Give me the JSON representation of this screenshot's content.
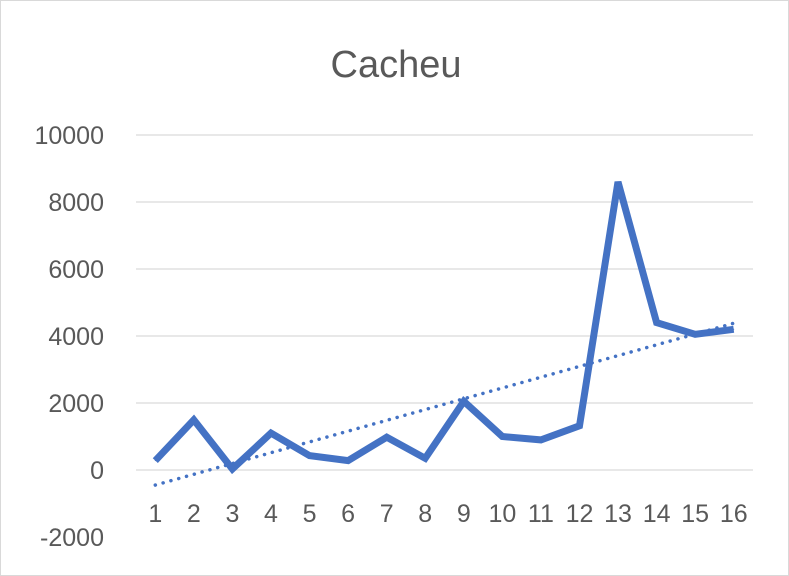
{
  "chart_data": {
    "type": "line",
    "title": "Cacheu",
    "xlabel": "",
    "ylabel": "",
    "categories": [
      "1",
      "2",
      "3",
      "4",
      "5",
      "6",
      "7",
      "8",
      "9",
      "10",
      "11",
      "12",
      "13",
      "14",
      "15",
      "16"
    ],
    "series": [
      {
        "values": [
          280,
          1500,
          30,
          1100,
          430,
          280,
          980,
          350,
          2050,
          1000,
          900,
          1320,
          8600,
          4400,
          4050,
          4200
        ],
        "color": "#4472c4",
        "style": "solid"
      }
    ],
    "trendline": {
      "kind": "linear",
      "start": -450,
      "end": 4380,
      "color": "#4472c4",
      "style": "dotted"
    },
    "ylim": [
      -2000,
      10000
    ],
    "yticks": [
      "10000",
      "8000",
      "6000",
      "4000",
      "2000",
      "0",
      "-2000"
    ],
    "ytick_values": [
      10000,
      8000,
      6000,
      4000,
      2000,
      0,
      -2000
    ],
    "grid": true,
    "legend": "none",
    "x_labels_position": "below zero line"
  }
}
